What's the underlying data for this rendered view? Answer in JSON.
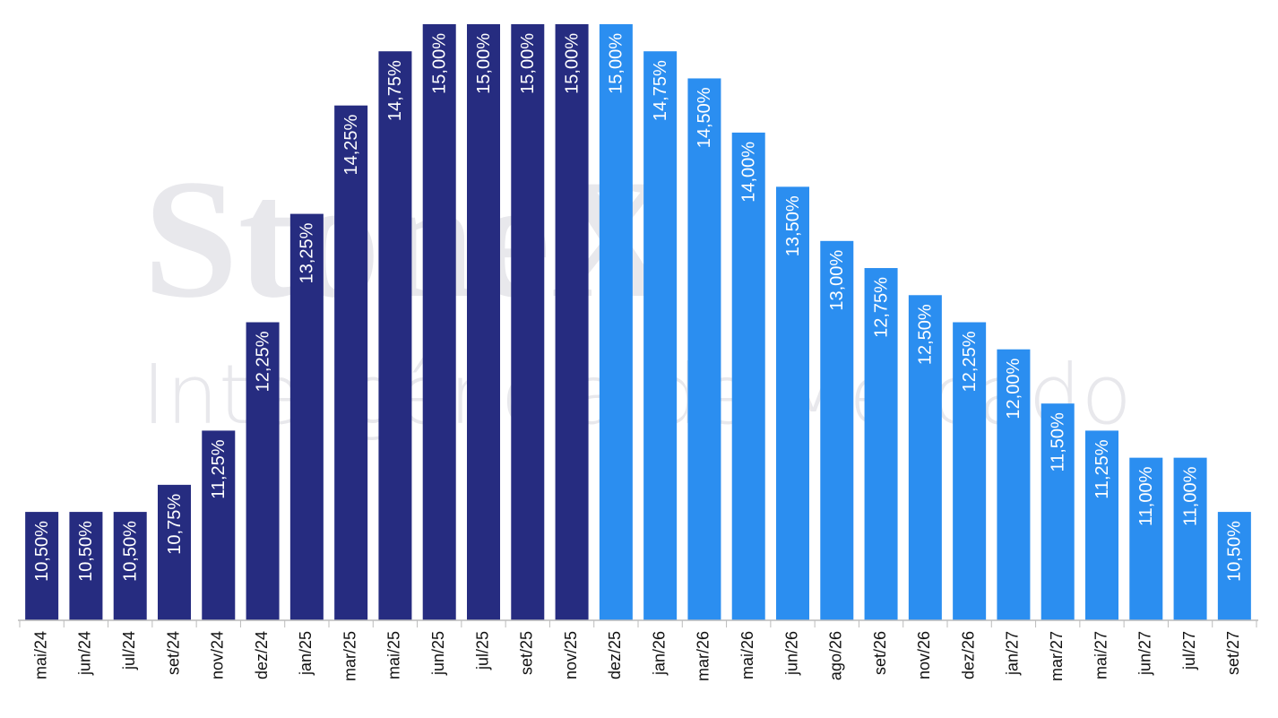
{
  "chart_data": {
    "type": "bar",
    "watermark": [
      "StoneX",
      "Inteligência de Mercado"
    ],
    "categories": [
      "mai/24",
      "jun/24",
      "jul/24",
      "set/24",
      "nov/24",
      "dez/24",
      "jan/25",
      "mar/25",
      "mai/25",
      "jun/25",
      "jul/25",
      "set/25",
      "nov/25",
      "dez/25",
      "jan/26",
      "mar/26",
      "mai/26",
      "jun/26",
      "ago/26",
      "set/26",
      "nov/26",
      "dez/26",
      "jan/27",
      "mar/27",
      "mai/27",
      "jun/27",
      "jul/27",
      "set/27"
    ],
    "values": [
      10.5,
      10.5,
      10.5,
      10.75,
      11.25,
      12.25,
      13.25,
      14.25,
      14.75,
      15,
      15,
      15,
      15,
      15,
      14.75,
      14.5,
      14,
      13.5,
      13,
      12.75,
      12.5,
      12.25,
      12,
      11.5,
      11.25,
      11,
      11,
      10.5
    ],
    "value_labels": [
      "10,50%",
      "10,50%",
      "10,50%",
      "10,75%",
      "11,25%",
      "12,25%",
      "13,25%",
      "14,25%",
      "14,75%",
      "15,00%",
      "15,00%",
      "15,00%",
      "15,00%",
      "15,00%",
      "14,75%",
      "14,50%",
      "14,00%",
      "13,50%",
      "13,00%",
      "12,75%",
      "12,50%",
      "12,25%",
      "12,00%",
      "11,50%",
      "11,25%",
      "11,00%",
      "11,00%",
      "10,50%"
    ],
    "colors": [
      "#262c80",
      "#262c80",
      "#262c80",
      "#262c80",
      "#262c80",
      "#262c80",
      "#262c80",
      "#262c80",
      "#262c80",
      "#262c80",
      "#262c80",
      "#262c80",
      "#262c80",
      "#2b8ef0",
      "#2b8ef0",
      "#2b8ef0",
      "#2b8ef0",
      "#2b8ef0",
      "#2b8ef0",
      "#2b8ef0",
      "#2b8ef0",
      "#2b8ef0",
      "#2b8ef0",
      "#2b8ef0",
      "#2b8ef0",
      "#2b8ef0",
      "#2b8ef0",
      "#2b8ef0"
    ],
    "ylim": [
      9.5,
      15
    ]
  }
}
